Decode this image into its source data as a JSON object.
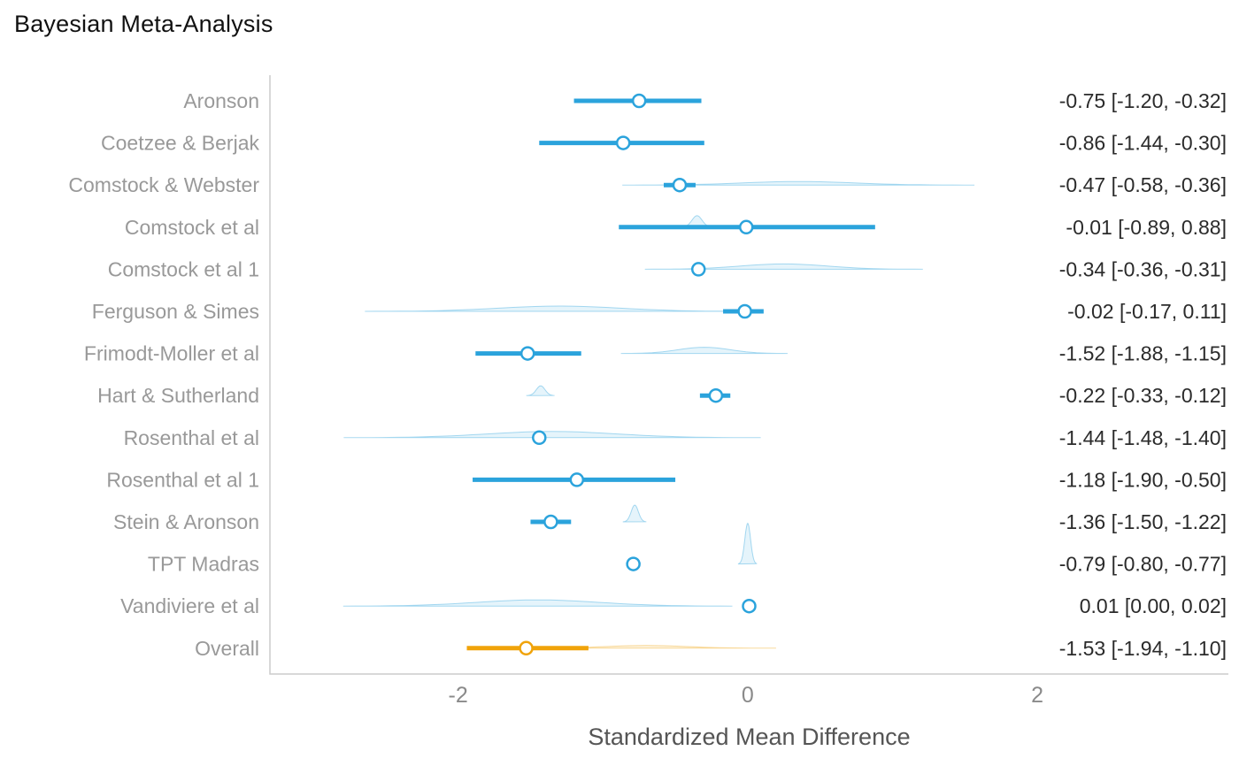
{
  "title": "Bayesian Meta-Analysis",
  "chart_data": {
    "type": "forest",
    "title": "Bayesian Meta-Analysis",
    "xlabel": "Standardized Mean Difference",
    "x_ticks": [
      -2,
      0,
      2
    ],
    "xlim": [
      -3.3,
      3.32
    ],
    "legend": "none",
    "grid": false,
    "colors": {
      "study": "#2BA3DC",
      "overall": "#F0A30A",
      "axis": "#cccccc",
      "label": "#999999",
      "estimate": "#2b2b2b",
      "tick": "#8a8a8a",
      "xlabel": "#555555"
    },
    "studies": [
      {
        "label": "Aronson",
        "mean": -0.75,
        "lower": -1.2,
        "upper": -0.32,
        "estimate": "-0.75 [-1.20, -0.32]",
        "overall": false,
        "density": null
      },
      {
        "label": "Coetzee & Berjak",
        "mean": -0.86,
        "lower": -1.44,
        "upper": -0.3,
        "estimate": "-0.86 [-1.44, -0.30]",
        "overall": false,
        "density": null
      },
      {
        "label": "Comstock & Webster",
        "mean": -0.47,
        "lower": -0.58,
        "upper": -0.36,
        "estimate": "-0.47 [-0.58, -0.36]",
        "overall": false,
        "density": {
          "center": 0.35,
          "sigma": 0.38,
          "height": 4
        }
      },
      {
        "label": "Comstock et al",
        "mean": -0.01,
        "lower": -0.89,
        "upper": 0.88,
        "estimate": "-0.01 [-0.89, 0.88]",
        "overall": false,
        "density": {
          "center": -0.35,
          "sigma": 0.035,
          "height": 13
        }
      },
      {
        "label": "Comstock et al 1",
        "mean": -0.34,
        "lower": -0.36,
        "upper": -0.31,
        "estimate": "-0.34 [-0.36, -0.31]",
        "overall": false,
        "density": {
          "center": 0.25,
          "sigma": 0.3,
          "height": 6
        }
      },
      {
        "label": "Ferguson & Simes",
        "mean": -0.02,
        "lower": -0.17,
        "upper": 0.11,
        "estimate": "-0.02 [-0.17, 0.11]",
        "overall": false,
        "density": {
          "center": -1.3,
          "sigma": 0.42,
          "height": 6
        }
      },
      {
        "label": "Frimodt-Moller et al",
        "mean": -1.52,
        "lower": -1.88,
        "upper": -1.15,
        "estimate": "-1.52 [-1.88, -1.15]",
        "overall": false,
        "density": {
          "center": -0.3,
          "sigma": 0.18,
          "height": 7
        }
      },
      {
        "label": "Hart & Sutherland",
        "mean": -0.22,
        "lower": -0.33,
        "upper": -0.12,
        "estimate": "-0.22 [-0.33, -0.12]",
        "overall": false,
        "density": {
          "center": -1.43,
          "sigma": 0.03,
          "height": 11
        }
      },
      {
        "label": "Rosenthal et al",
        "mean": -1.44,
        "lower": -1.48,
        "upper": -1.4,
        "estimate": "-1.44 [-1.48, -1.40]",
        "overall": false,
        "density": {
          "center": -1.35,
          "sigma": 0.45,
          "height": 7
        }
      },
      {
        "label": "Rosenthal et al 1",
        "mean": -1.18,
        "lower": -1.9,
        "upper": -0.5,
        "estimate": "-1.18 [-1.90, -0.50]",
        "overall": false,
        "density": null
      },
      {
        "label": "Stein & Aronson",
        "mean": -1.36,
        "lower": -1.5,
        "upper": -1.22,
        "estimate": "-1.36 [-1.50, -1.22]",
        "overall": false,
        "density": {
          "center": -0.78,
          "sigma": 0.025,
          "height": 19
        }
      },
      {
        "label": "TPT Madras",
        "mean": -0.79,
        "lower": -0.8,
        "upper": -0.77,
        "estimate": "-0.79 [-0.80, -0.77]",
        "overall": false,
        "density": {
          "center": 0.0,
          "sigma": 0.02,
          "height": 46
        }
      },
      {
        "label": "Vandiviere et al",
        "mean": 0.01,
        "lower": 0.0,
        "upper": 0.02,
        "estimate": "0.01 [0.00, 0.02]",
        "overall": false,
        "density": {
          "center": -1.45,
          "sigma": 0.42,
          "height": 7
        }
      },
      {
        "label": "Overall",
        "mean": -1.53,
        "lower": -1.94,
        "upper": -1.1,
        "estimate": "-1.53 [-1.94, -1.10]",
        "overall": true,
        "density": {
          "center": -0.7,
          "sigma": 0.28,
          "height": 3
        }
      }
    ]
  }
}
